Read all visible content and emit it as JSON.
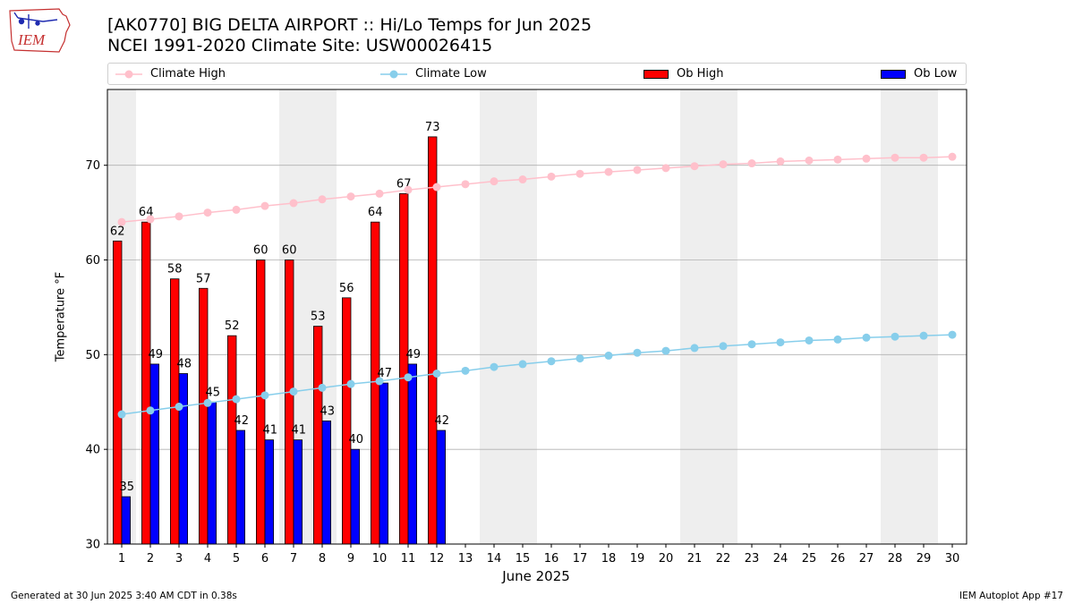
{
  "header": {
    "title_line1": "[AK0770] BIG DELTA AIRPORT :: Hi/Lo Temps for Jun 2025",
    "title_line2": "NCEI 1991-2020 Climate Site: USW00026415"
  },
  "logo": {
    "text": "IEM",
    "icon": "iowa-state-outline-logo"
  },
  "legend": {
    "climate_high": "Climate High",
    "climate_low": "Climate Low",
    "ob_high": "Ob High",
    "ob_low": "Ob Low"
  },
  "colors": {
    "climate_high": "#ffc0cb",
    "climate_low": "#87ceeb",
    "ob_high": "#ff0000",
    "ob_low": "#0000ff",
    "weekend_band": "#eeeeee",
    "grid": "#b0b0b0"
  },
  "footer": {
    "generated": "Generated at 30 Jun 2025 3:40 AM CDT in 0.38s",
    "app": "IEM Autoplot App #17"
  },
  "chart_data": {
    "type": "bar",
    "xlabel": "June 2025",
    "ylabel": "Temperature °F",
    "ylim": [
      30,
      78
    ],
    "yticks": [
      30,
      40,
      50,
      60,
      70
    ],
    "days": [
      1,
      2,
      3,
      4,
      5,
      6,
      7,
      8,
      9,
      10,
      11,
      12,
      13,
      14,
      15,
      16,
      17,
      18,
      19,
      20,
      21,
      22,
      23,
      24,
      25,
      26,
      27,
      28,
      29,
      30
    ],
    "weekend_days": [
      1,
      7,
      8,
      14,
      15,
      21,
      22,
      28,
      29
    ],
    "grid": true,
    "legend_placement": "top",
    "series": [
      {
        "name": "Ob High",
        "kind": "bar",
        "values": [
          62,
          64,
          58,
          57,
          52,
          60,
          60,
          53,
          56,
          64,
          67,
          73
        ]
      },
      {
        "name": "Ob Low",
        "kind": "bar",
        "values": [
          35,
          49,
          48,
          45,
          42,
          41,
          41,
          43,
          40,
          47,
          49,
          42
        ]
      },
      {
        "name": "Climate High",
        "kind": "line",
        "values": [
          64.0,
          64.3,
          64.6,
          65.0,
          65.3,
          65.7,
          66.0,
          66.4,
          66.7,
          67.0,
          67.4,
          67.7,
          68.0,
          68.3,
          68.5,
          68.8,
          69.1,
          69.3,
          69.5,
          69.7,
          69.9,
          70.1,
          70.2,
          70.4,
          70.5,
          70.6,
          70.7,
          70.8,
          70.8,
          70.9
        ]
      },
      {
        "name": "Climate Low",
        "kind": "line",
        "values": [
          43.7,
          44.1,
          44.5,
          44.9,
          45.3,
          45.7,
          46.1,
          46.5,
          46.9,
          47.2,
          47.6,
          48.0,
          48.3,
          48.7,
          49.0,
          49.3,
          49.6,
          49.9,
          50.2,
          50.4,
          50.7,
          50.9,
          51.1,
          51.3,
          51.5,
          51.6,
          51.8,
          51.9,
          52.0,
          52.1
        ]
      }
    ]
  }
}
